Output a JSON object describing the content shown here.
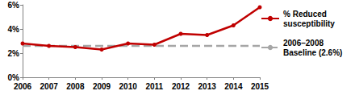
{
  "chart_data": {
    "type": "line",
    "categories": [
      "2006",
      "2007",
      "2008",
      "2009",
      "2010",
      "2011",
      "2012",
      "2013",
      "2014",
      "2015"
    ],
    "series": [
      {
        "name": "% Reduced susceptibility",
        "color": "#c00000",
        "marker": "circle",
        "line_style": "solid",
        "values": [
          2.8,
          2.6,
          2.5,
          2.3,
          2.8,
          2.7,
          3.6,
          3.5,
          4.3,
          5.8
        ]
      },
      {
        "name": "2006–2008 Baseline (2.6%)",
        "color": "#a6a6a6",
        "marker": "none",
        "line_style": "dashed",
        "values": [
          2.6,
          2.6,
          2.6,
          2.6,
          2.6,
          2.6,
          2.6,
          2.6,
          2.6,
          2.6
        ]
      }
    ],
    "ylim": [
      0,
      6
    ],
    "yticks": [
      {
        "value": 0,
        "label": "0%"
      },
      {
        "value": 2,
        "label": "2%"
      },
      {
        "value": 4,
        "label": "4%"
      },
      {
        "value": 6,
        "label": "6%"
      }
    ],
    "grid": false,
    "legend": "right"
  }
}
